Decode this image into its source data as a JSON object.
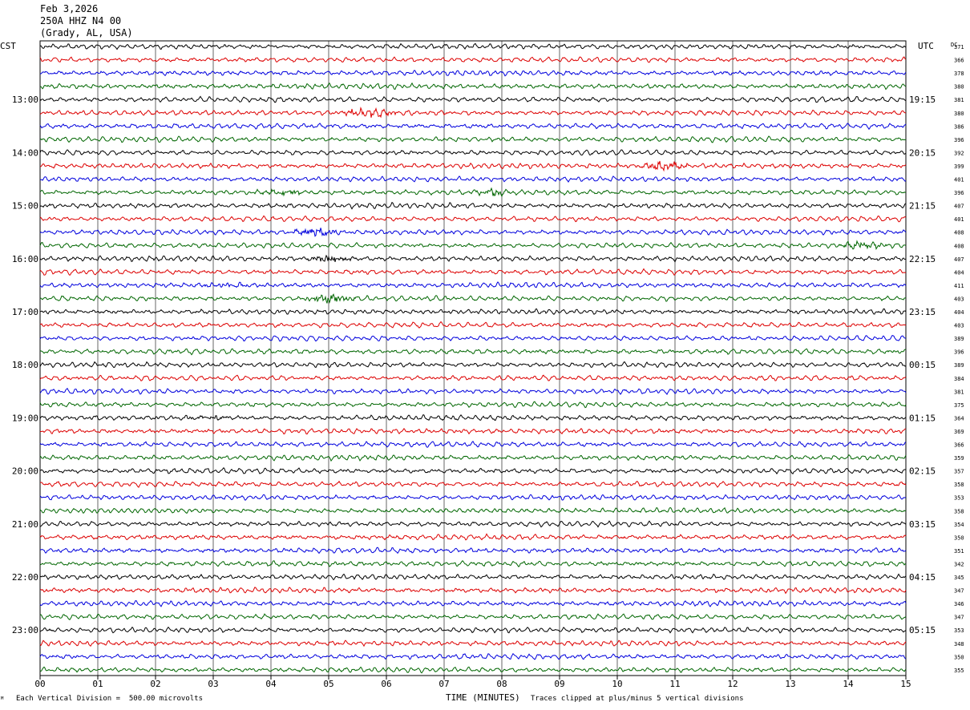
{
  "header": {
    "date": "Feb 3,2026",
    "station": "250A HHZ N4 00",
    "location": "(Grady, AL, USA)"
  },
  "labels": {
    "left_timezone": "CST",
    "right_timezone": "UTC",
    "dc_label": "DC"
  },
  "footer": {
    "scale_text": "Each Vertical Division =  500.00 microvolts",
    "clip_text": "Traces clipped at plus/minus 5 vertical divisions",
    "corner_mark": "ᴹ"
  },
  "colors": [
    "#000000",
    "#dd0000",
    "#0000dd",
    "#006600"
  ],
  "chart_data": {
    "type": "line",
    "xlabel": "TIME (MINUTES)",
    "x_ticks": [
      "00",
      "01",
      "02",
      "03",
      "04",
      "05",
      "06",
      "07",
      "08",
      "09",
      "10",
      "11",
      "12",
      "13",
      "14",
      "15"
    ],
    "xlim": [
      0,
      15
    ],
    "trace_minutes": 15,
    "traces_per_hour": 4,
    "left_hour_labels": [
      "13:00",
      "14:00",
      "15:00",
      "16:00",
      "17:00",
      "18:00",
      "19:00",
      "20:00",
      "21:00",
      "22:00",
      "23:00"
    ],
    "right_hour_labels": [
      "19:15",
      "20:15",
      "21:15",
      "22:15",
      "23:15",
      "00:15",
      "01:15",
      "02:15",
      "03:15",
      "04:15",
      "05:15"
    ],
    "first_labeled_trace": 4,
    "dc_offsets": [
      371,
      366,
      378,
      380,
      381,
      380,
      386,
      396,
      392,
      399,
      401,
      396,
      407,
      401,
      408,
      408,
      407,
      404,
      411,
      403,
      404,
      403,
      389,
      396,
      389,
      384,
      381,
      375,
      364,
      369,
      366,
      359,
      357,
      358,
      353,
      358,
      354,
      350,
      351,
      342,
      345,
      347,
      346,
      347,
      353,
      348,
      350,
      355
    ],
    "events": [
      {
        "trace": 5,
        "minute": 5.7,
        "strength": 3
      },
      {
        "trace": 9,
        "minute": 10.8,
        "strength": 2.5
      },
      {
        "trace": 11,
        "minute": 4.2,
        "strength": 1.6
      },
      {
        "trace": 11,
        "minute": 7.8,
        "strength": 1.6
      },
      {
        "trace": 14,
        "minute": 4.8,
        "strength": 2
      },
      {
        "trace": 15,
        "minute": 14.3,
        "strength": 2
      },
      {
        "trace": 16,
        "minute": 5.0,
        "strength": 1.6
      },
      {
        "trace": 18,
        "minute": 3.2,
        "strength": 1.5
      },
      {
        "trace": 19,
        "minute": 5.0,
        "strength": 2.5
      },
      {
        "trace": 28,
        "minute": 2.9,
        "strength": 1.5
      }
    ]
  }
}
